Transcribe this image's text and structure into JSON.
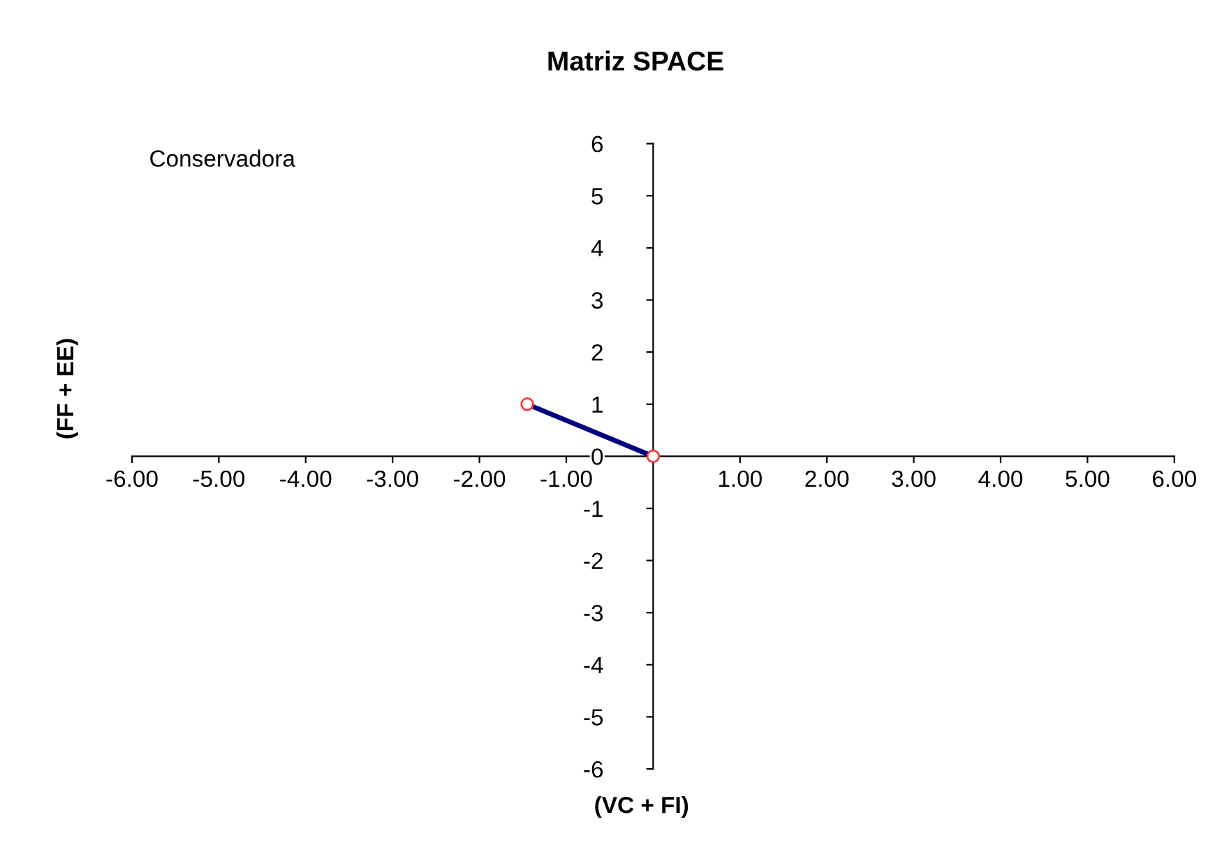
{
  "chart_data": {
    "type": "line",
    "title": "Matriz SPACE",
    "xlabel": "(VC + FI)",
    "ylabel": "(FF + EE)",
    "annotations": [
      "Conservadora"
    ],
    "series": [
      {
        "color": "#000080",
        "x": [
          -1.45,
          0
        ],
        "values": [
          1.0,
          0
        ]
      }
    ],
    "marker": "circle",
    "line_style": "solid",
    "grid": false,
    "xlim": [
      -6,
      6
    ],
    "ylim": [
      -6,
      6
    ],
    "xticks": [
      {
        "value": -6,
        "label": "-6.00"
      },
      {
        "value": -5,
        "label": "-5.00"
      },
      {
        "value": -4,
        "label": "-4.00"
      },
      {
        "value": -3,
        "label": "-3.00"
      },
      {
        "value": -2,
        "label": "-2.00"
      },
      {
        "value": -1,
        "label": "-1.00"
      },
      {
        "value": 0,
        "label": null
      },
      {
        "value": 1,
        "label": "1.00"
      },
      {
        "value": 2,
        "label": "2.00"
      },
      {
        "value": 3,
        "label": "3.00"
      },
      {
        "value": 4,
        "label": "4.00"
      },
      {
        "value": 5,
        "label": "5.00"
      },
      {
        "value": 6,
        "label": "6.00"
      }
    ],
    "yticks": [
      -6,
      -5,
      -4,
      -3,
      -2,
      -1,
      0,
      1,
      2,
      3,
      4,
      5,
      6
    ]
  }
}
